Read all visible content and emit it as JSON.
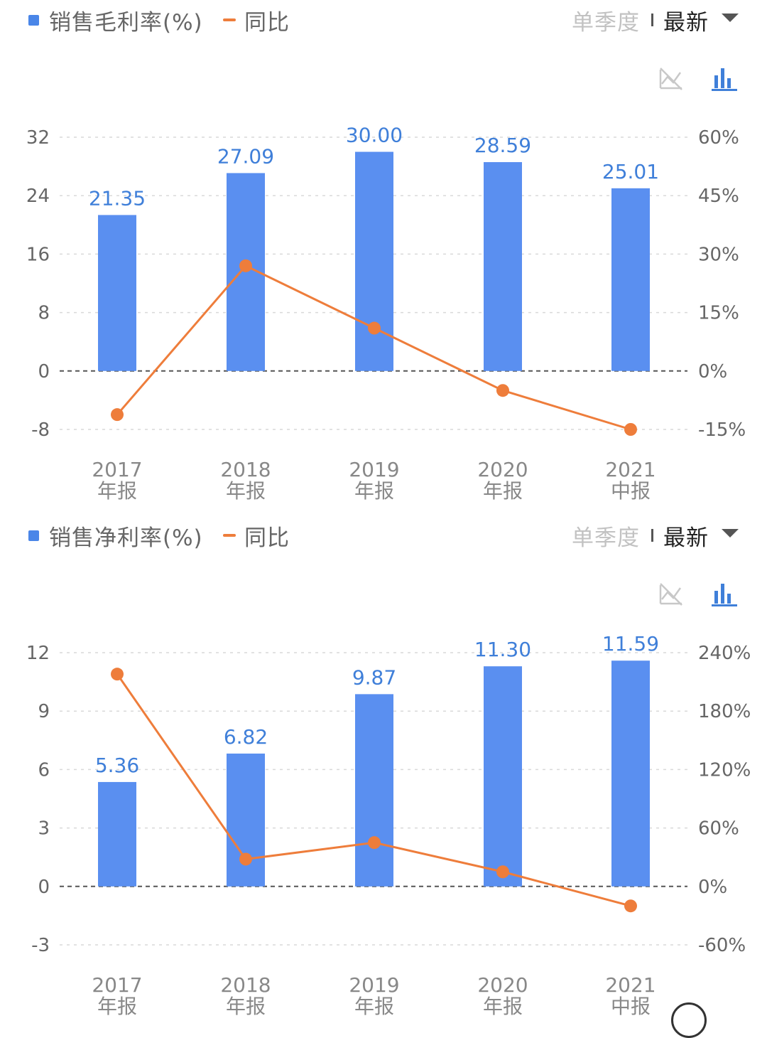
{
  "colors": {
    "bar": "#5a8ff0",
    "line": "#ee7d3b",
    "grid": "#d9d9d9",
    "label_blue": "#3f7fd9"
  },
  "icons": {
    "hide_line": "line-chart-hidden-icon",
    "bar_chart": "bar-chart-icon"
  },
  "panels": [
    {
      "legend_bar": "销售毛利率(%)",
      "legend_line": "同比",
      "period_quarter": "单季度",
      "period_latest": "最新"
    },
    {
      "legend_bar": "销售净利率(%)",
      "legend_line": "同比",
      "period_quarter": "单季度",
      "period_latest": "最新"
    }
  ],
  "chart_data": [
    {
      "type": "bar",
      "categories": [
        [
          "2017",
          "年报"
        ],
        [
          "2018",
          "年报"
        ],
        [
          "2019",
          "年报"
        ],
        [
          "2020",
          "年报"
        ],
        [
          "2021",
          "中报"
        ]
      ],
      "series": [
        {
          "name": "销售毛利率(%)",
          "type": "bar",
          "axis": "left",
          "values": [
            21.35,
            27.09,
            30.0,
            28.59,
            25.01
          ],
          "labels": [
            "21.35",
            "27.09",
            "30.00",
            "28.59",
            "25.01"
          ]
        },
        {
          "name": "同比",
          "type": "line",
          "axis": "right",
          "values": [
            -11.2,
            27,
            11,
            -5,
            -15
          ]
        }
      ],
      "y_left": {
        "ticks": [
          "32",
          "24",
          "16",
          "8",
          "0",
          "-8"
        ],
        "min": -8,
        "max": 32
      },
      "y_right": {
        "ticks": [
          "60%",
          "45%",
          "30%",
          "15%",
          "0%",
          "-15%"
        ],
        "min": -15,
        "max": 60
      },
      "grid": true
    },
    {
      "type": "bar",
      "categories": [
        [
          "2017",
          "年报"
        ],
        [
          "2018",
          "年报"
        ],
        [
          "2019",
          "年报"
        ],
        [
          "2020",
          "年报"
        ],
        [
          "2021",
          "中报"
        ]
      ],
      "series": [
        {
          "name": "销售净利率(%)",
          "type": "bar",
          "axis": "left",
          "values": [
            5.36,
            6.82,
            9.87,
            11.3,
            11.59
          ],
          "labels": [
            "5.36",
            "6.82",
            "9.87",
            "11.30",
            "11.59"
          ]
        },
        {
          "name": "同比",
          "type": "line",
          "axis": "right",
          "values": [
            218,
            28,
            45,
            15,
            -20
          ]
        }
      ],
      "y_left": {
        "ticks": [
          "12",
          "9",
          "6",
          "3",
          "0",
          "-3"
        ],
        "min": -3,
        "max": 12
      },
      "y_right": {
        "ticks": [
          "240%",
          "180%",
          "120%",
          "60%",
          "0%",
          "-60%"
        ],
        "min": -60,
        "max": 240
      },
      "grid": true
    }
  ]
}
